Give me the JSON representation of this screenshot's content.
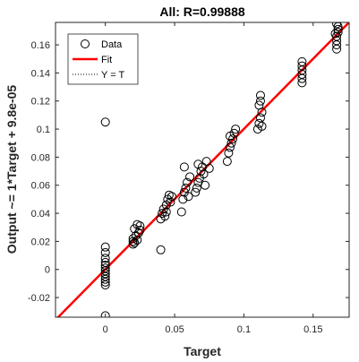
{
  "chart_data": {
    "type": "scatter",
    "title": "All: R=0.99888",
    "xlabel": "Target",
    "ylabel": "Output ~= 1*Target + 9.8e-05",
    "xlim": [
      -0.036,
      0.176
    ],
    "ylim": [
      -0.034,
      0.176
    ],
    "x_ticks": [
      0,
      0.05,
      0.1,
      0.15
    ],
    "x_tick_labels": [
      "0",
      "0.05",
      "0.1",
      "0.15"
    ],
    "y_ticks": [
      -0.02,
      0,
      0.02,
      0.04,
      0.06,
      0.08,
      0.1,
      0.12,
      0.14,
      0.16
    ],
    "y_tick_labels": [
      "-0.02",
      "0",
      "0.02",
      "0.04",
      "0.06",
      "0.08",
      "0.1",
      "0.12",
      "0.14",
      "0.16"
    ],
    "grid": false,
    "legend_position": "top-left",
    "legend": [
      {
        "label": "Data",
        "style": "circle-marker"
      },
      {
        "label": "Fit",
        "style": "solid-line"
      },
      {
        "label": "Y = T",
        "style": "dotted-line"
      }
    ],
    "fit": {
      "slope": 1,
      "intercept": 9.8e-05,
      "color": "#ff0000"
    },
    "identity_line": {
      "slope": 1,
      "intercept": 0
    },
    "series": [
      {
        "name": "Data",
        "marker": "circle",
        "color": "#000000",
        "points": [
          {
            "x": 0,
            "y": -0.033
          },
          {
            "x": 0,
            "y": 0.105
          },
          {
            "x": 0,
            "y": 0.016
          },
          {
            "x": 0,
            "y": 0.012
          },
          {
            "x": 0,
            "y": 0.008
          },
          {
            "x": 0,
            "y": 0.005
          },
          {
            "x": 0,
            "y": 0.003
          },
          {
            "x": 0,
            "y": 0.001
          },
          {
            "x": 0,
            "y": -0.001
          },
          {
            "x": 0,
            "y": -0.003
          },
          {
            "x": 0,
            "y": -0.005
          },
          {
            "x": 0,
            "y": -0.007
          },
          {
            "x": 0,
            "y": -0.009
          },
          {
            "x": 0,
            "y": -0.011
          },
          {
            "x": 0.02,
            "y": 0.018
          },
          {
            "x": 0.02,
            "y": 0.02
          },
          {
            "x": 0.02,
            "y": 0.022
          },
          {
            "x": 0.021,
            "y": 0.019
          },
          {
            "x": 0.022,
            "y": 0.024
          },
          {
            "x": 0.023,
            "y": 0.021
          },
          {
            "x": 0.024,
            "y": 0.026
          },
          {
            "x": 0.025,
            "y": 0.028
          },
          {
            "x": 0.025,
            "y": 0.031
          },
          {
            "x": 0.023,
            "y": 0.032
          },
          {
            "x": 0.021,
            "y": 0.029
          },
          {
            "x": 0.04,
            "y": 0.014
          },
          {
            "x": 0.04,
            "y": 0.036
          },
          {
            "x": 0.041,
            "y": 0.04
          },
          {
            "x": 0.042,
            "y": 0.043
          },
          {
            "x": 0.043,
            "y": 0.038
          },
          {
            "x": 0.044,
            "y": 0.046
          },
          {
            "x": 0.045,
            "y": 0.05
          },
          {
            "x": 0.046,
            "y": 0.053
          },
          {
            "x": 0.047,
            "y": 0.048
          },
          {
            "x": 0.048,
            "y": 0.052
          },
          {
            "x": 0.044,
            "y": 0.041
          },
          {
            "x": 0.055,
            "y": 0.041
          },
          {
            "x": 0.056,
            "y": 0.05
          },
          {
            "x": 0.057,
            "y": 0.055
          },
          {
            "x": 0.058,
            "y": 0.058
          },
          {
            "x": 0.059,
            "y": 0.062
          },
          {
            "x": 0.057,
            "y": 0.073
          },
          {
            "x": 0.06,
            "y": 0.052
          },
          {
            "x": 0.061,
            "y": 0.066
          },
          {
            "x": 0.065,
            "y": 0.055
          },
          {
            "x": 0.066,
            "y": 0.058
          },
          {
            "x": 0.067,
            "y": 0.062
          },
          {
            "x": 0.068,
            "y": 0.065
          },
          {
            "x": 0.069,
            "y": 0.07
          },
          {
            "x": 0.07,
            "y": 0.073
          },
          {
            "x": 0.071,
            "y": 0.068
          },
          {
            "x": 0.072,
            "y": 0.06
          },
          {
            "x": 0.067,
            "y": 0.075
          },
          {
            "x": 0.073,
            "y": 0.077
          },
          {
            "x": 0.075,
            "y": 0.072
          },
          {
            "x": 0.088,
            "y": 0.077
          },
          {
            "x": 0.089,
            "y": 0.083
          },
          {
            "x": 0.09,
            "y": 0.087
          },
          {
            "x": 0.091,
            "y": 0.09
          },
          {
            "x": 0.092,
            "y": 0.093
          },
          {
            "x": 0.093,
            "y": 0.097
          },
          {
            "x": 0.094,
            "y": 0.1
          },
          {
            "x": 0.09,
            "y": 0.095
          },
          {
            "x": 0.11,
            "y": 0.1
          },
          {
            "x": 0.111,
            "y": 0.104
          },
          {
            "x": 0.112,
            "y": 0.108
          },
          {
            "x": 0.113,
            "y": 0.112
          },
          {
            "x": 0.111,
            "y": 0.117
          },
          {
            "x": 0.112,
            "y": 0.124
          },
          {
            "x": 0.113,
            "y": 0.102
          },
          {
            "x": 0.112,
            "y": 0.12
          },
          {
            "x": 0.142,
            "y": 0.133
          },
          {
            "x": 0.142,
            "y": 0.136
          },
          {
            "x": 0.142,
            "y": 0.139
          },
          {
            "x": 0.142,
            "y": 0.142
          },
          {
            "x": 0.142,
            "y": 0.145
          },
          {
            "x": 0.142,
            "y": 0.148
          },
          {
            "x": 0.167,
            "y": 0.157
          },
          {
            "x": 0.167,
            "y": 0.16
          },
          {
            "x": 0.167,
            "y": 0.163
          },
          {
            "x": 0.167,
            "y": 0.166
          },
          {
            "x": 0.168,
            "y": 0.169
          },
          {
            "x": 0.168,
            "y": 0.171
          },
          {
            "x": 0.168,
            "y": 0.173
          },
          {
            "x": 0.167,
            "y": 0.175
          },
          {
            "x": 0.166,
            "y": 0.168
          }
        ]
      }
    ]
  }
}
